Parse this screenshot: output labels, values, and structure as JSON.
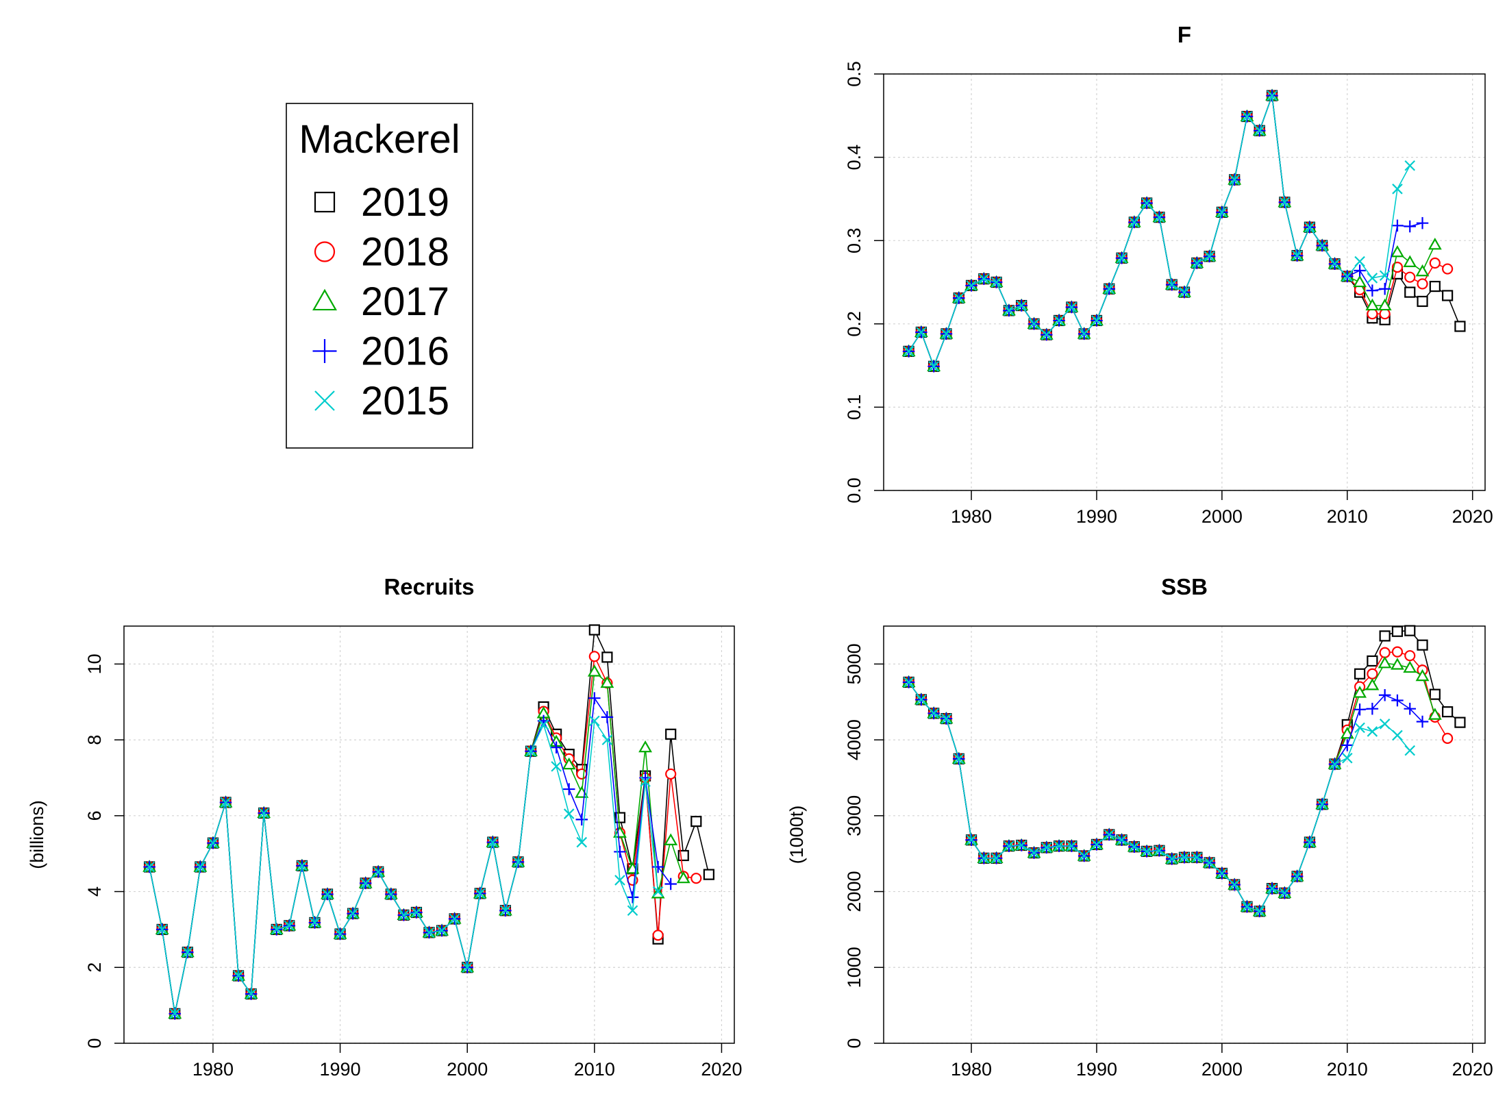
{
  "legend": {
    "title": "Mackerel",
    "entries": [
      {
        "label": "2019",
        "color": "#000000",
        "symbol": "square"
      },
      {
        "label": "2018",
        "color": "#ff0000",
        "symbol": "circle"
      },
      {
        "label": "2017",
        "color": "#00aa00",
        "symbol": "triangle"
      },
      {
        "label": "2016",
        "color": "#0000ff",
        "symbol": "plus"
      },
      {
        "label": "2015",
        "color": "#00cccc",
        "symbol": "cross"
      }
    ]
  },
  "chart_data": [
    {
      "id": "F",
      "type": "line",
      "title": "F",
      "ylabel": "",
      "xlim": [
        1973,
        2021
      ],
      "ylim": [
        0,
        0.5
      ],
      "xticks": [
        "1980",
        "1990",
        "2000",
        "2010",
        "2020"
      ],
      "yticks": [
        "0.0",
        "0.1",
        "0.2",
        "0.3",
        "0.4",
        "0.5"
      ],
      "grid": true,
      "x_start": 1975,
      "base": [
        0.167,
        0.19,
        0.149,
        0.188,
        0.231,
        0.246,
        0.254,
        0.25,
        0.216,
        0.222,
        0.2,
        0.187,
        0.204,
        0.22,
        0.188,
        0.204,
        0.242,
        0.279,
        0.322,
        0.345,
        0.328,
        0.247,
        0.238,
        0.273,
        0.281,
        0.334,
        0.373,
        0.449,
        0.432,
        0.474,
        0.346,
        0.282,
        0.316,
        0.294,
        0.272,
        0.257
      ],
      "series": [
        {
          "name": "2019",
          "values": [
            0.238,
            0.207,
            0.205,
            0.26,
            0.238,
            0.227,
            0.245,
            0.234,
            0.197
          ]
        },
        {
          "name": "2018",
          "values": [
            0.241,
            0.212,
            0.212,
            0.268,
            0.256,
            0.248,
            0.273,
            0.266
          ]
        },
        {
          "name": "2017",
          "values": [
            0.25,
            0.222,
            0.222,
            0.286,
            0.274,
            0.263,
            0.295
          ]
        },
        {
          "name": "2016",
          "values": [
            0.264,
            0.24,
            0.242,
            0.318,
            0.317,
            0.321
          ]
        },
        {
          "name": "2015",
          "values": [
            0.275,
            0.255,
            0.258,
            0.362,
            0.39
          ]
        }
      ]
    },
    {
      "id": "Recruits",
      "type": "line",
      "title": "Recruits",
      "ylabel": "(billions)",
      "xlim": [
        1973,
        2021
      ],
      "ylim": [
        0,
        11
      ],
      "xticks": [
        "1980",
        "1990",
        "2000",
        "2010",
        "2020"
      ],
      "yticks": [
        "0",
        "2",
        "4",
        "6",
        "8",
        "10"
      ],
      "grid": true,
      "x_start": 1975,
      "base": [
        4.65,
        3.0,
        0.78,
        2.4,
        4.65,
        5.28,
        6.35,
        1.78,
        1.3,
        6.07,
        3.0,
        3.1,
        4.68,
        3.18,
        3.93,
        2.88,
        3.42,
        4.22,
        4.52,
        3.93,
        3.38,
        3.45,
        2.92,
        2.97,
        3.28,
        2.0,
        3.95,
        5.3,
        3.5,
        4.78,
        7.7
      ],
      "series": [
        {
          "name": "2019",
          "values": [
            8.87,
            8.15,
            7.62,
            7.22,
            10.9,
            10.18,
            5.95,
            4.6,
            7.05,
            2.75,
            8.15,
            4.95,
            5.85,
            4.45
          ]
        },
        {
          "name": "2018",
          "values": [
            8.75,
            8.05,
            7.5,
            7.1,
            10.2,
            9.5,
            5.55,
            4.3,
            7.0,
            2.85,
            7.1,
            4.4,
            4.35
          ]
        },
        {
          "name": "2017",
          "values": [
            8.7,
            7.95,
            7.35,
            6.6,
            9.8,
            9.5,
            5.55,
            4.6,
            7.8,
            3.95,
            5.35,
            4.35
          ]
        },
        {
          "name": "2016",
          "values": [
            8.5,
            7.8,
            6.7,
            5.9,
            9.1,
            8.6,
            5.05,
            3.85,
            7.0,
            4.65,
            4.2
          ]
        },
        {
          "name": "2015",
          "values": [
            8.4,
            7.3,
            6.05,
            5.3,
            8.5,
            8.0,
            4.3,
            3.5,
            6.9,
            4.0
          ]
        }
      ]
    },
    {
      "id": "SSB",
      "type": "line",
      "title": "SSB",
      "ylabel": "(1000t)",
      "xlim": [
        1973,
        2021
      ],
      "ylim": [
        0,
        5500
      ],
      "xticks": [
        "1980",
        "1990",
        "2000",
        "2010",
        "2020"
      ],
      "yticks": [
        "0",
        "1000",
        "2000",
        "3000",
        "4000",
        "5000"
      ],
      "grid": true,
      "x_start": 1975,
      "base": [
        4760,
        4530,
        4350,
        4280,
        3750,
        2680,
        2440,
        2440,
        2600,
        2610,
        2510,
        2580,
        2600,
        2600,
        2470,
        2620,
        2750,
        2680,
        2590,
        2530,
        2540,
        2430,
        2450,
        2450,
        2380,
        2240,
        2090,
        1800,
        1740,
        2040,
        1980,
        2200,
        2650,
        3150,
        3680
      ],
      "series": [
        {
          "name": "2019",
          "values": [
            4200,
            4870,
            5040,
            5370,
            5430,
            5440,
            5250,
            4600,
            4370,
            4230
          ]
        },
        {
          "name": "2018",
          "values": [
            4130,
            4700,
            4870,
            5150,
            5160,
            5110,
            4920,
            4300,
            4020
          ]
        },
        {
          "name": "2017",
          "values": [
            4080,
            4620,
            4720,
            5010,
            4990,
            4950,
            4840,
            4330
          ]
        },
        {
          "name": "2016",
          "values": [
            3930,
            4400,
            4410,
            4590,
            4520,
            4410,
            4240
          ]
        },
        {
          "name": "2015",
          "values": [
            3760,
            4160,
            4110,
            4210,
            4060,
            3860
          ]
        }
      ]
    }
  ]
}
